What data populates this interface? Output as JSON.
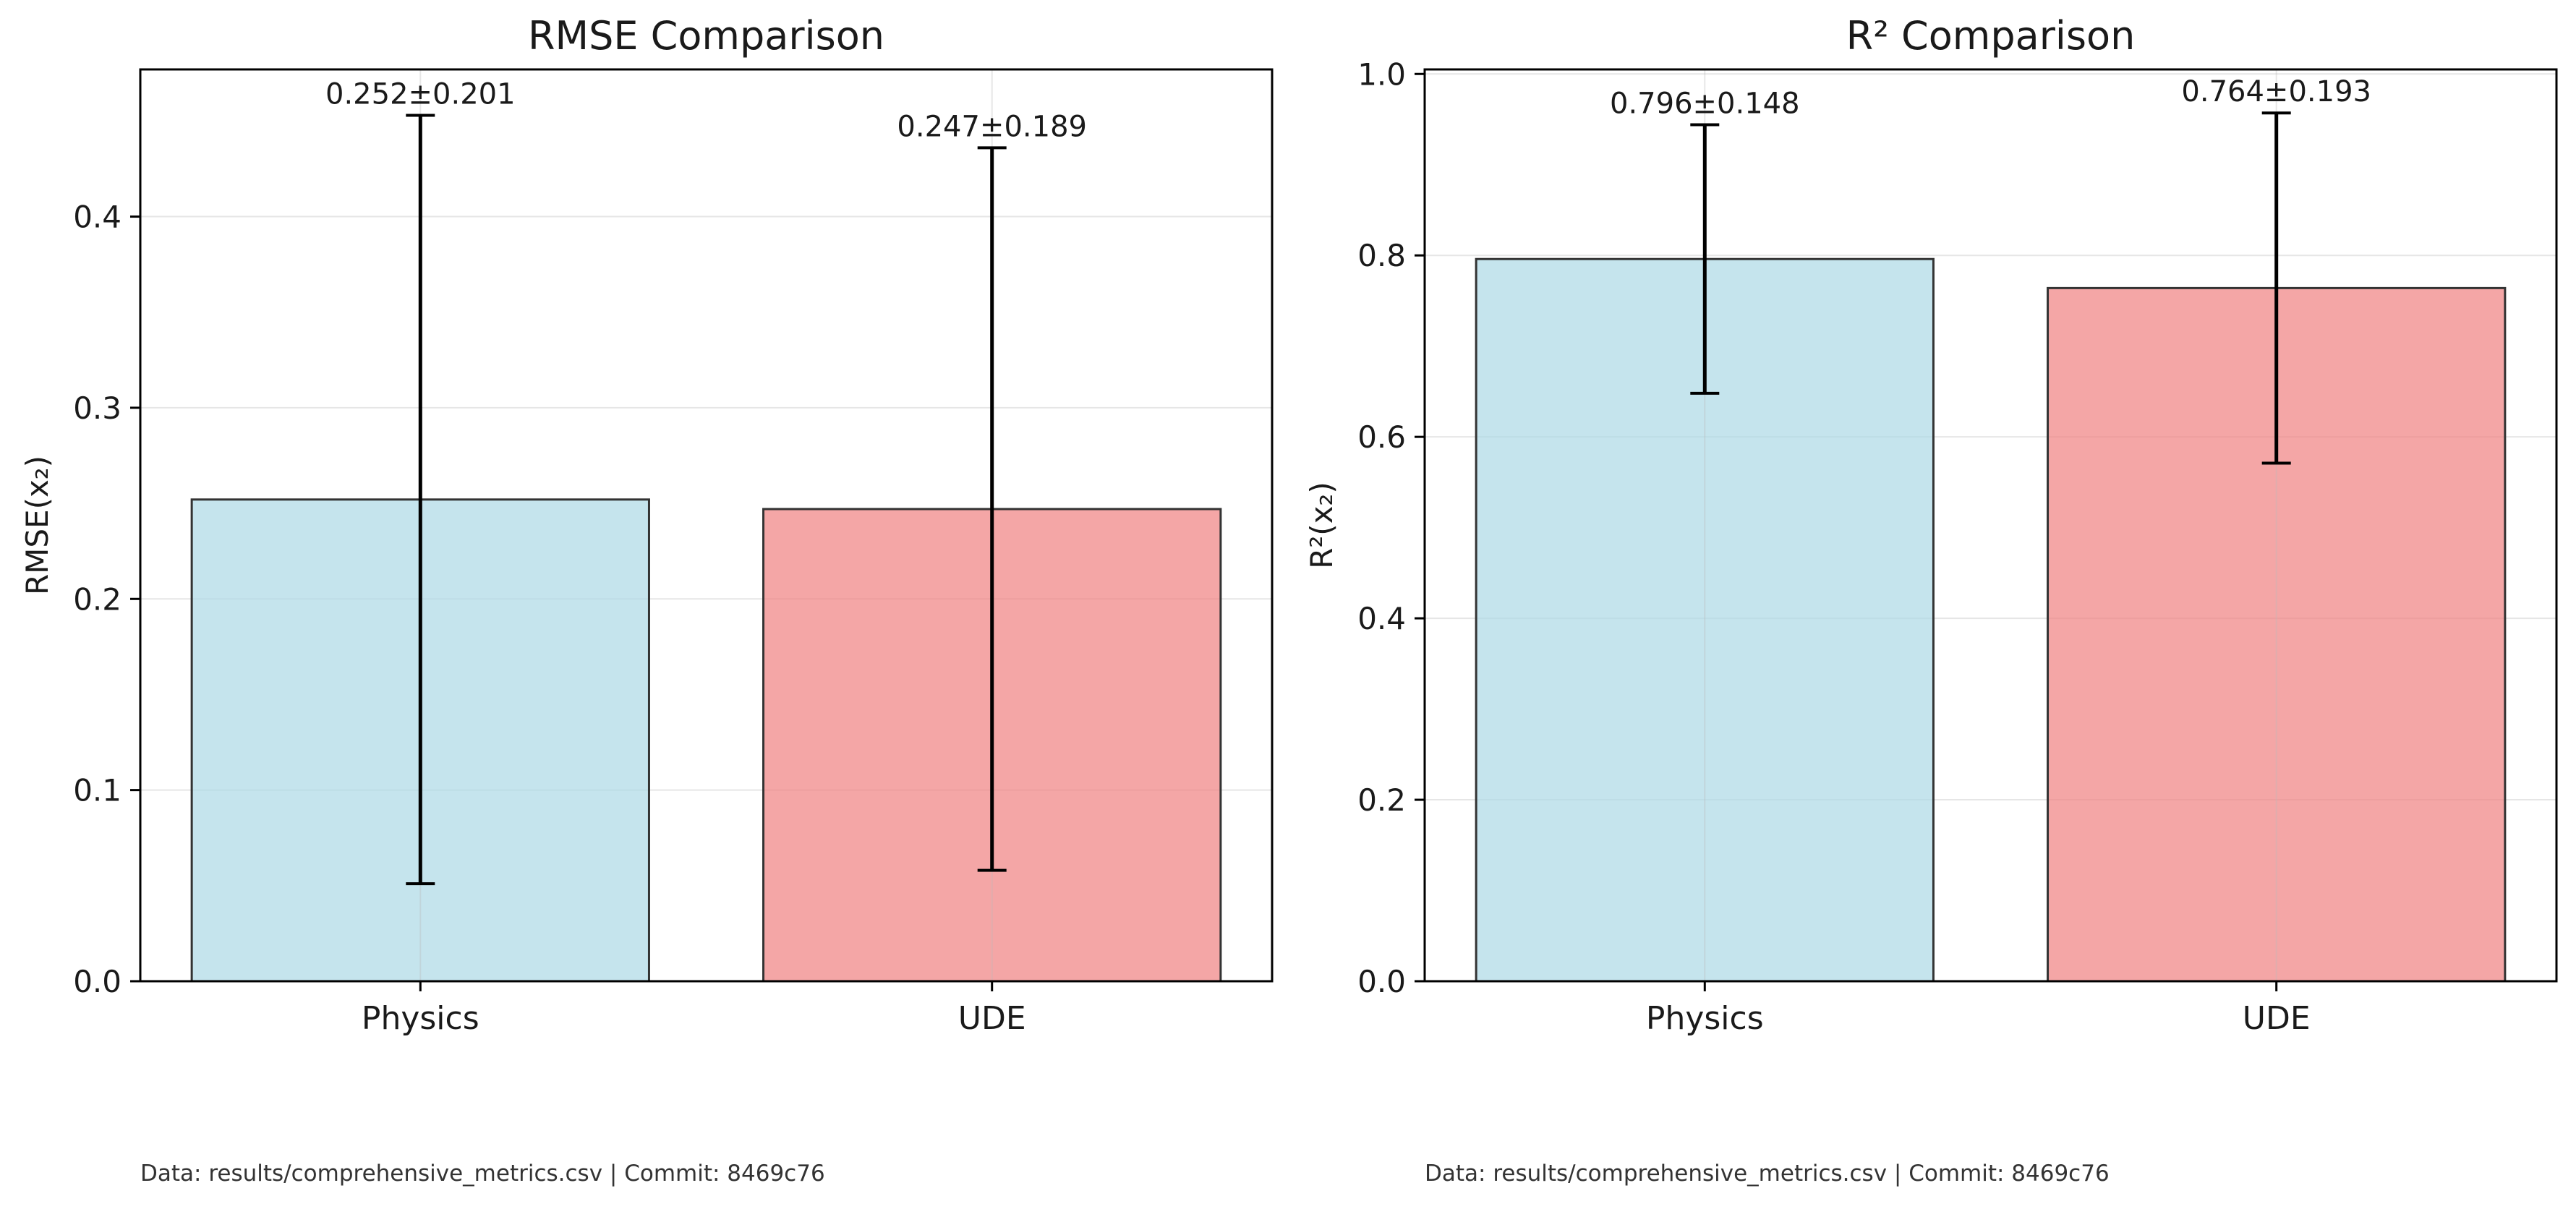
{
  "colors": {
    "physics": "#add8e6",
    "ude": "#f08080",
    "edge": "#333333",
    "grid": "#e6e6e6",
    "errorbar": "#000000",
    "text": "#1a1a1a",
    "footer_text": "#333333"
  },
  "chart_data": [
    {
      "type": "bar",
      "title": "RMSE Comparison",
      "xlabel": "",
      "ylabel": "RMSE(x₂)",
      "categories": [
        "Physics",
        "UDE"
      ],
      "values": [
        0.252,
        0.247
      ],
      "errors": [
        0.201,
        0.189
      ],
      "value_labels": [
        "0.252±0.201",
        "0.247±0.189"
      ],
      "bar_colors": [
        "#add8e6",
        "#f08080"
      ],
      "ylim": [
        0,
        0.477
      ],
      "yticks": [
        0.0,
        0.1,
        0.2,
        0.3,
        0.4
      ],
      "ytick_labels": [
        "0.0",
        "0.1",
        "0.2",
        "0.3",
        "0.4"
      ],
      "grid": true,
      "footer": "Data: results/comprehensive_metrics.csv | Commit: 8469c76"
    },
    {
      "type": "bar",
      "title": "R² Comparison",
      "xlabel": "",
      "ylabel": "R²(x₂)",
      "categories": [
        "Physics",
        "UDE"
      ],
      "values": [
        0.796,
        0.764
      ],
      "errors": [
        0.148,
        0.193
      ],
      "value_labels": [
        "0.796±0.148",
        "0.764±0.193"
      ],
      "bar_colors": [
        "#add8e6",
        "#f08080"
      ],
      "ylim": [
        0,
        1.005
      ],
      "yticks": [
        0.0,
        0.2,
        0.4,
        0.6,
        0.8,
        1.0
      ],
      "ytick_labels": [
        "0.0",
        "0.2",
        "0.4",
        "0.6",
        "0.8",
        "1.0"
      ],
      "grid": true,
      "footer": "Data: results/comprehensive_metrics.csv | Commit: 8469c76"
    }
  ]
}
